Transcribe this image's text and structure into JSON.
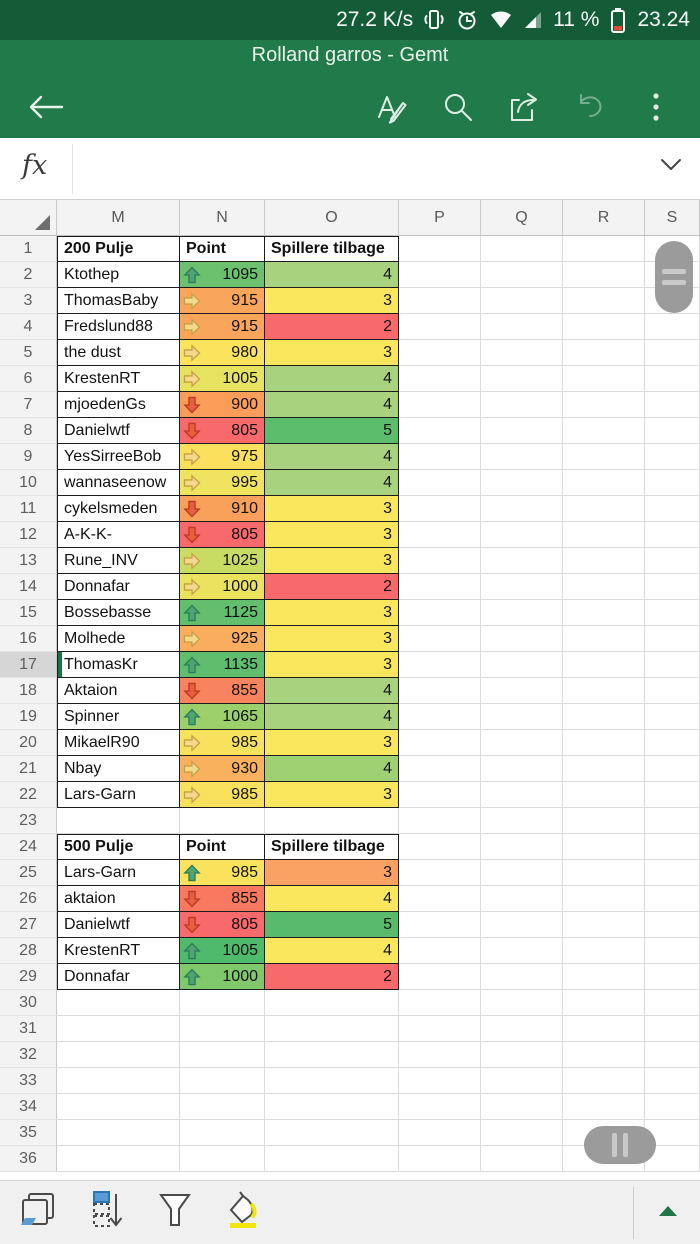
{
  "status_bar": {
    "net_speed": "27.2 K/s",
    "battery": "11 %",
    "time": "23.24",
    "icons": [
      "vibrate-icon",
      "alarm-icon",
      "wifi-icon",
      "signal-icon",
      "battery-icon"
    ]
  },
  "app_bar": {
    "title": "Rolland garros - Gemt",
    "icons": [
      "back-icon",
      "format-text-icon",
      "search-icon",
      "share-icon",
      "undo-icon",
      "overflow-icon"
    ]
  },
  "formula_bar": {
    "label": "fx",
    "value": "",
    "icon": "chevron-down-icon"
  },
  "sheet": {
    "columns": [
      "M",
      "N",
      "O",
      "P",
      "Q",
      "R",
      "S"
    ],
    "row_numbers": [
      1,
      2,
      3,
      4,
      5,
      6,
      7,
      8,
      9,
      10,
      11,
      12,
      13,
      14,
      15,
      16,
      17,
      18,
      19,
      20,
      21,
      22,
      23,
      24,
      25,
      26,
      27,
      28,
      29,
      30,
      31,
      32,
      33,
      34,
      35,
      36
    ],
    "selected_row": 17,
    "colors": {
      "app_green": "#217A4A",
      "status_green": "#145C38",
      "accent_green": "#217346",
      "table_border": "#1C1C1C",
      "grid_line": "#DCDCDC"
    },
    "tables": [
      {
        "header_row": 1,
        "title": "200 Pulje",
        "point_label": "Point",
        "remaining_label": "Spillere tilbage",
        "rows": [
          {
            "row": 2,
            "name": "Ktothep",
            "point": "1095",
            "trend": "up",
            "point_bg": "#6CC16F",
            "remaining": "4",
            "remaining_bg": "#A8D27D"
          },
          {
            "row": 3,
            "name": "ThomasBaby",
            "point": "915",
            "trend": "right",
            "point_bg": "#F9A65C",
            "remaining": "3",
            "remaining_bg": "#FBE75D"
          },
          {
            "row": 4,
            "name": "Fredslund88",
            "point": "915",
            "trend": "right",
            "point_bg": "#F9A65C",
            "remaining": "2",
            "remaining_bg": "#F8696B"
          },
          {
            "row": 5,
            "name": "the dust",
            "point": "980",
            "trend": "right",
            "point_bg": "#FAE35D",
            "remaining": "3",
            "remaining_bg": "#FBE75D"
          },
          {
            "row": 6,
            "name": "KrestenRT",
            "point": "1005",
            "trend": "right",
            "point_bg": "#E7E25F",
            "remaining": "4",
            "remaining_bg": "#A8D27D"
          },
          {
            "row": 7,
            "name": "mjoedenGs",
            "point": "900",
            "trend": "down",
            "point_bg": "#F99D59",
            "remaining": "4",
            "remaining_bg": "#A8D27D"
          },
          {
            "row": 8,
            "name": "Danielwtf",
            "point": "805",
            "trend": "down",
            "point_bg": "#F8696B",
            "remaining": "5",
            "remaining_bg": "#5BBC6C"
          },
          {
            "row": 9,
            "name": "YesSirreeBob",
            "point": "975",
            "trend": "right",
            "point_bg": "#FBE05D",
            "remaining": "4",
            "remaining_bg": "#A8D27D"
          },
          {
            "row": 10,
            "name": "wannaseenow",
            "point": "995",
            "trend": "right",
            "point_bg": "#EFE35F",
            "remaining": "4",
            "remaining_bg": "#A8D27D"
          },
          {
            "row": 11,
            "name": "cykelsmeden",
            "point": "910",
            "trend": "down",
            "point_bg": "#F9A15A",
            "remaining": "3",
            "remaining_bg": "#FBE75D"
          },
          {
            "row": 12,
            "name": "A-K-K-",
            "point": "805",
            "trend": "down",
            "point_bg": "#F8696B",
            "remaining": "3",
            "remaining_bg": "#FBE75D"
          },
          {
            "row": 13,
            "name": "Rune_INV",
            "point": "1025",
            "trend": "right",
            "point_bg": "#C8DC64",
            "remaining": "3",
            "remaining_bg": "#FBE75D"
          },
          {
            "row": 14,
            "name": "Donnafar",
            "point": "1000",
            "trend": "right",
            "point_bg": "#EBE25E",
            "remaining": "2",
            "remaining_bg": "#F8696B"
          },
          {
            "row": 15,
            "name": "Bossebasse",
            "point": "1125",
            "trend": "up",
            "point_bg": "#63BE6E",
            "remaining": "3",
            "remaining_bg": "#FBE75D"
          },
          {
            "row": 16,
            "name": "Molhede",
            "point": "925",
            "trend": "right",
            "point_bg": "#F9AD5D",
            "remaining": "3",
            "remaining_bg": "#FBE75D"
          },
          {
            "row": 17,
            "name": "ThomasKr",
            "point": "1135",
            "trend": "up",
            "point_bg": "#5FBD6D",
            "remaining": "3",
            "remaining_bg": "#FBE75D"
          },
          {
            "row": 18,
            "name": "Aktaion",
            "point": "855",
            "trend": "down",
            "point_bg": "#F8845F",
            "remaining": "4",
            "remaining_bg": "#A8D27D"
          },
          {
            "row": 19,
            "name": "Spinner",
            "point": "1065",
            "trend": "up",
            "point_bg": "#9CD06A",
            "remaining": "4",
            "remaining_bg": "#A8D27D"
          },
          {
            "row": 20,
            "name": "MikaelR90",
            "point": "985",
            "trend": "right",
            "point_bg": "#F8E25D",
            "remaining": "3",
            "remaining_bg": "#FBE75D"
          },
          {
            "row": 21,
            "name": "Nbay",
            "point": "930",
            "trend": "right",
            "point_bg": "#F9B15E",
            "remaining": "4",
            "remaining_bg": "#9FD172"
          },
          {
            "row": 22,
            "name": "Lars-Garn",
            "point": "985",
            "trend": "right",
            "point_bg": "#F8E25D",
            "remaining": "3",
            "remaining_bg": "#FBE75D"
          }
        ]
      },
      {
        "header_row": 24,
        "title": "500 Pulje",
        "point_label": "Point",
        "remaining_label": "Spillere tilbage",
        "rows": [
          {
            "row": 25,
            "name": "Lars-Garn",
            "point": "985",
            "trend": "up",
            "point_bg": "#FBE25D",
            "remaining": "3",
            "remaining_bg": "#F9A263"
          },
          {
            "row": 26,
            "name": "aktaion",
            "point": "855",
            "trend": "down",
            "point_bg": "#F8795F",
            "remaining": "4",
            "remaining_bg": "#FBE75D"
          },
          {
            "row": 27,
            "name": "Danielwtf",
            "point": "805",
            "trend": "down",
            "point_bg": "#F8696B",
            "remaining": "5",
            "remaining_bg": "#57BB6B"
          },
          {
            "row": 28,
            "name": "KrestenRT",
            "point": "1005",
            "trend": "up",
            "point_bg": "#4FBA6B",
            "remaining": "4",
            "remaining_bg": "#FBE75D"
          },
          {
            "row": 29,
            "name": "Donnafar",
            "point": "1000",
            "trend": "up",
            "point_bg": "#7FC96A",
            "remaining": "2",
            "remaining_bg": "#F8696B"
          }
        ]
      }
    ]
  },
  "bottom_toolbar": {
    "icons": [
      "sheets-icon",
      "fill-down-icon",
      "filter-icon",
      "fill-color-icon",
      "expand-up-icon"
    ]
  }
}
